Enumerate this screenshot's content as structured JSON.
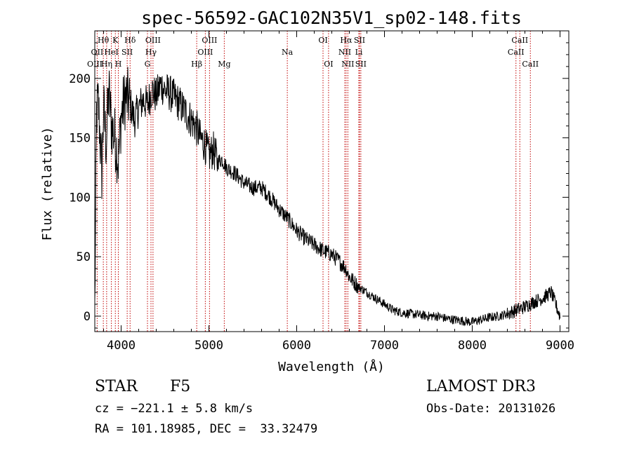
{
  "chart_data": {
    "type": "line",
    "title": "spec-56592-GAC102N35V1_sp02-148.fits",
    "xlabel": "Wavelength (Å)",
    "ylabel": "Flux (relative)",
    "xlim": [
      3700,
      9100
    ],
    "ylim": [
      -13,
      240
    ],
    "xticks": [
      4000,
      5000,
      6000,
      7000,
      8000,
      9000
    ],
    "xtick_labels": [
      "4000",
      "5000",
      "6000",
      "7000",
      "8000",
      "9000"
    ],
    "yticks": [
      0,
      50,
      100,
      150,
      200
    ],
    "ytick_labels": [
      "0",
      "50",
      "100",
      "150",
      "200"
    ],
    "series": [
      {
        "name": "flux",
        "x": [
          3700,
          3720,
          3740,
          3760,
          3780,
          3800,
          3830,
          3860,
          3890,
          3930,
          3970,
          4000,
          4050,
          4100,
          4150,
          4200,
          4250,
          4300,
          4350,
          4400,
          4450,
          4500,
          4550,
          4600,
          4650,
          4700,
          4750,
          4800,
          4850,
          4900,
          4950,
          5000,
          5050,
          5100,
          5150,
          5200,
          5300,
          5400,
          5500,
          5600,
          5700,
          5800,
          5900,
          6000,
          6100,
          6200,
          6300,
          6400,
          6500,
          6560,
          6600,
          6700,
          6800,
          6900,
          7000,
          7100,
          7200,
          7300,
          7400,
          7500,
          7600,
          7700,
          7800,
          7900,
          8000,
          8100,
          8200,
          8300,
          8400,
          8500,
          8600,
          8700,
          8800,
          8900,
          9000
        ],
        "y": [
          5,
          170,
          180,
          150,
          120,
          175,
          145,
          190,
          160,
          150,
          130,
          168,
          185,
          180,
          165,
          175,
          182,
          178,
          190,
          185,
          195,
          190,
          188,
          184,
          180,
          175,
          170,
          165,
          160,
          150,
          145,
          135,
          140,
          130,
          132,
          125,
          120,
          112,
          108,
          108,
          100,
          90,
          82,
          72,
          65,
          60,
          55,
          52,
          45,
          40,
          33,
          25,
          20,
          15,
          10,
          5,
          3,
          2,
          1,
          0,
          0,
          -2,
          -3,
          -4,
          -5,
          -3,
          -1,
          0,
          2,
          5,
          8,
          12,
          15,
          20,
          0
        ]
      }
    ],
    "line_markers": [
      {
        "label": "Hθ",
        "wavelength": 3797,
        "row": 1
      },
      {
        "label": "OII",
        "wavelength": 3727,
        "row": 2
      },
      {
        "label": "OIII",
        "wavelength": 3700,
        "row": 3
      },
      {
        "label": "Hη",
        "wavelength": 3835,
        "row": 3
      },
      {
        "label": "HeI",
        "wavelength": 3889,
        "row": 2
      },
      {
        "label": "K",
        "wavelength": 3934,
        "row": 1
      },
      {
        "label": "SII",
        "wavelength": 4069,
        "row": 2
      },
      {
        "label": "H",
        "wavelength": 3968,
        "row": 3
      },
      {
        "label": "Hδ",
        "wavelength": 4102,
        "row": 1
      },
      {
        "label": "G",
        "wavelength": 4300,
        "row": 3
      },
      {
        "label": "Hγ",
        "wavelength": 4340,
        "row": 2
      },
      {
        "label": "OIII",
        "wavelength": 4363,
        "row": 1
      },
      {
        "label": "Hβ",
        "wavelength": 4861,
        "row": 3
      },
      {
        "label": "OIII",
        "wavelength": 4959,
        "row": 2
      },
      {
        "label": "OIII",
        "wavelength": 5007,
        "row": 1
      },
      {
        "label": "Mg",
        "wavelength": 5175,
        "row": 3
      },
      {
        "label": "Na",
        "wavelength": 5893,
        "row": 2
      },
      {
        "label": "OI",
        "wavelength": 6300,
        "row": 1
      },
      {
        "label": "OI",
        "wavelength": 6363,
        "row": 3
      },
      {
        "label": "NII",
        "wavelength": 6548,
        "row": 2
      },
      {
        "label": "Hα",
        "wavelength": 6563,
        "row": 1
      },
      {
        "label": "NII",
        "wavelength": 6583,
        "row": 3
      },
      {
        "label": "Li",
        "wavelength": 6708,
        "row": 2
      },
      {
        "label": "SII",
        "wavelength": 6716,
        "row": 1
      },
      {
        "label": "SII",
        "wavelength": 6731,
        "row": 3
      },
      {
        "label": "CaII",
        "wavelength": 8498,
        "row": 2
      },
      {
        "label": "CaII",
        "wavelength": 8542,
        "row": 1
      },
      {
        "label": "CaII",
        "wavelength": 8662,
        "row": 3
      }
    ],
    "colors": {
      "spectrum": "#000000",
      "marker_line": "#c00000",
      "axes": "#000000"
    }
  },
  "info": {
    "object_class": "STAR",
    "subclass": "F5",
    "survey": "LAMOST DR3",
    "redshift": "cz = −221.1 ± 5.8 km/s",
    "obs_date": "Obs-Date: 20131026",
    "coords": "RA = 101.18985, DEC =  33.32479"
  }
}
